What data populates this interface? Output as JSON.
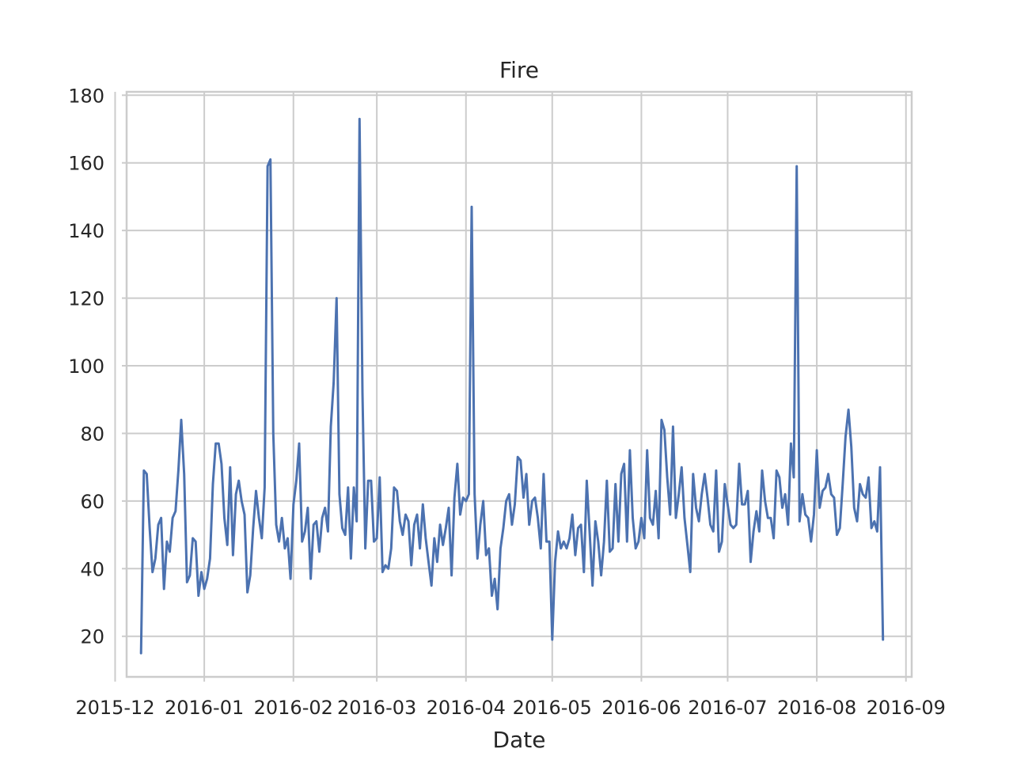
{
  "chart_data": {
    "type": "line",
    "title": "Fire",
    "xlabel": "Date",
    "ylabel": "",
    "ylim": [
      8,
      181
    ],
    "xlim": [
      "2015-12-05",
      "2016-09-03"
    ],
    "grid": true,
    "legend": "none",
    "colors": {
      "series": "#4c72b0",
      "grid": "#cccccc",
      "text": "#262626"
    },
    "x_ticks": [
      "2015-12-01",
      "2016-01-01",
      "2016-02-01",
      "2016-03-01",
      "2016-04-01",
      "2016-05-01",
      "2016-06-01",
      "2016-07-01",
      "2016-08-01",
      "2016-09-01"
    ],
    "x_tick_labels": [
      "2015-12",
      "2016-01",
      "2016-02",
      "2016-03",
      "2016-04",
      "2016-05",
      "2016-06",
      "2016-07",
      "2016-08",
      "2016-09"
    ],
    "y_ticks": [
      20,
      40,
      60,
      80,
      100,
      120,
      140,
      160,
      180
    ],
    "series": [
      {
        "start_date": "2015-12-10",
        "values": [
          15,
          69,
          68,
          52,
          39,
          43,
          53,
          55,
          34,
          48,
          45,
          55,
          57,
          69,
          84,
          68,
          36,
          38,
          49,
          48,
          32,
          39,
          34,
          37,
          43,
          65,
          77,
          77,
          71,
          55,
          47,
          70,
          44,
          62,
          66,
          60,
          56,
          33,
          38,
          52,
          63,
          55,
          49,
          64,
          159,
          161,
          80,
          53,
          48,
          55,
          46,
          49,
          37,
          59,
          66,
          77,
          48,
          51,
          58,
          37,
          53,
          54,
          45,
          55,
          58,
          51,
          82,
          95,
          120,
          62,
          52,
          50,
          64,
          43,
          64,
          54,
          173,
          92,
          46,
          66,
          66,
          48,
          49,
          67,
          39,
          41,
          40,
          46,
          64,
          63,
          54,
          50,
          56,
          54,
          41,
          53,
          56,
          46,
          59,
          49,
          42,
          35,
          49,
          42,
          53,
          47,
          52,
          58,
          38,
          61,
          71,
          56,
          61,
          60,
          62,
          147,
          62,
          43,
          53,
          60,
          44,
          46,
          32,
          37,
          28,
          46,
          52,
          60,
          62,
          53,
          59,
          73,
          72,
          61,
          68,
          53,
          60,
          61,
          55,
          46,
          68,
          48,
          48,
          19,
          42,
          51,
          46,
          48,
          46,
          49,
          56,
          44,
          52,
          53,
          39,
          66,
          51,
          35,
          54,
          48,
          38,
          48,
          66,
          45,
          46,
          65,
          48,
          68,
          71,
          48,
          75,
          55,
          46,
          48,
          55,
          49,
          75,
          55,
          53,
          63,
          49,
          84,
          81,
          67,
          56,
          82,
          55,
          62,
          70,
          55,
          47,
          39,
          68,
          58,
          54,
          62,
          68,
          61,
          53,
          51,
          69,
          45,
          48,
          65,
          59,
          53,
          52,
          53,
          71,
          59,
          59,
          63,
          42,
          51,
          57,
          51,
          69,
          60,
          55,
          55,
          49,
          69,
          67,
          58,
          62,
          53,
          77,
          67,
          159,
          54,
          62,
          56,
          55,
          48,
          56,
          75,
          58,
          63,
          64,
          68,
          62,
          61,
          50,
          52,
          65,
          79,
          87,
          76,
          58,
          54,
          65,
          62,
          61,
          67,
          52,
          54,
          51,
          70,
          19
        ]
      }
    ]
  }
}
